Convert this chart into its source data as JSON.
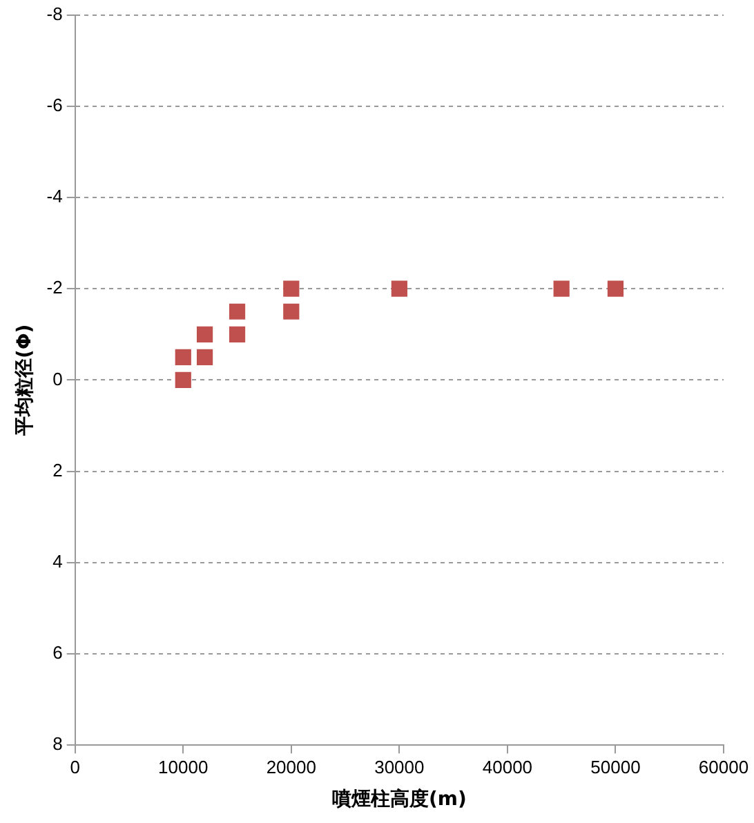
{
  "chart_data": {
    "type": "scatter",
    "xlabel": "噴煙柱高度(m)",
    "ylabel": "平均粒径(Φ)",
    "x": [
      10000,
      10000,
      12000,
      12000,
      15000,
      15000,
      20000,
      20000,
      30000,
      45000,
      50000
    ],
    "series": [
      {
        "color": "#c0504d",
        "values": [
          -0.5,
          0,
          -1,
          -0.5,
          -1.5,
          -1,
          -2,
          -1.5,
          -2,
          -2,
          -2
        ]
      }
    ],
    "xlim": [
      0,
      60000
    ],
    "xticks": [
      0,
      10000,
      20000,
      30000,
      40000,
      50000,
      60000
    ],
    "ylim": [
      8,
      -8
    ],
    "yticks": [
      8,
      6,
      4,
      2,
      0,
      -2,
      -4,
      -6,
      -8
    ],
    "grid": "y",
    "legend": false,
    "marker": "square"
  }
}
